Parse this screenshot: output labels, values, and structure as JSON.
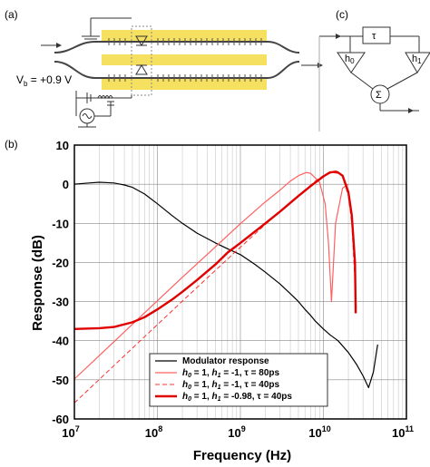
{
  "panels": {
    "a": "(a)",
    "b": "(b)",
    "c": "(c)"
  },
  "diagram_a": {
    "bias_label": "V",
    "bias_subscript": "b",
    "bias_value": " = +0.9 V"
  },
  "diagram_c": {
    "delay_symbol": "τ",
    "h0_symbol": "h",
    "h0_sub": "0",
    "h1_symbol": "h",
    "h1_sub": "1",
    "sum_symbol": "Σ"
  },
  "chart_data": {
    "type": "line",
    "xlabel": "Frequency (Hz)",
    "ylabel": "Response (dB)",
    "x_scale": "log",
    "xlim": [
      10000000.0,
      100000000000.0
    ],
    "ylim": [
      -60,
      10
    ],
    "x_ticks": [
      {
        "value": 10000000.0,
        "base": "10",
        "exp": "7"
      },
      {
        "value": 100000000.0,
        "base": "10",
        "exp": "8"
      },
      {
        "value": 1000000000.0,
        "base": "10",
        "exp": "9"
      },
      {
        "value": 10000000000.0,
        "base": "10",
        "exp": "10"
      },
      {
        "value": 100000000000.0,
        "base": "10",
        "exp": "11"
      }
    ],
    "y_ticks": [
      10,
      0,
      -10,
      -20,
      -30,
      -40,
      -50,
      -60
    ],
    "grid": true,
    "legend_position": "bottom-right",
    "series": [
      {
        "name": "Modulator response",
        "color": "#000000",
        "style": "solid",
        "x": [
          10000000.0,
          15000000.0,
          20000000.0,
          30000000.0,
          40000000.0,
          50000000.0,
          70000000.0,
          100000000.0,
          150000000.0,
          200000000.0,
          300000000.0,
          500000000.0,
          700000000.0,
          1000000000.0,
          1500000000.0,
          2000000000.0,
          3000000000.0,
          4000000000.0,
          5000000000.0,
          6000000000.0,
          7000000000.0,
          8000000000.0,
          10000000000.0,
          12000000000.0,
          15000000000.0,
          20000000000.0,
          25000000000.0,
          30000000000.0,
          35000000000.0,
          40000000000.0,
          45000000000.0
        ],
        "y": [
          0,
          0.3,
          0.5,
          0.3,
          -0.2,
          -0.8,
          -2.5,
          -5,
          -8,
          -10,
          -12.5,
          -15,
          -16.5,
          -18,
          -20.5,
          -22.5,
          -25.5,
          -28,
          -30,
          -32,
          -33.5,
          -35,
          -37,
          -38.5,
          -40,
          -43,
          -46,
          -49,
          -52,
          -48,
          -41
        ]
      },
      {
        "name": "h0 = 1, h1 = -1, τ = 80ps",
        "legend_parts": [
          "h",
          "0",
          " = 1, ",
          "h",
          "1",
          " = -1, τ = 80ps"
        ],
        "color": "#ff6060",
        "style": "solid",
        "x": [
          10000000.0,
          20000000.0,
          50000000.0,
          100000000.0,
          200000000.0,
          500000000.0,
          1000000000.0,
          2000000000.0,
          3000000000.0,
          4000000000.0,
          5000000000.0,
          6250000000.0,
          7000000000.0,
          9000000000.0,
          10500000000.0,
          11500000000.0,
          12500000000.0,
          14000000000.0,
          17000000000.0,
          20000000000.0
        ],
        "y": [
          -49.8,
          -43.8,
          -35.8,
          -29.8,
          -23.8,
          -16,
          -10.1,
          -4.5,
          -1.5,
          0.8,
          2.2,
          3.0,
          2.8,
          0.5,
          -5,
          -15,
          -30,
          -10,
          -1,
          0
        ]
      },
      {
        "name": "h0 = 1, h1 = -1, τ = 40ps",
        "legend_parts": [
          "h",
          "0",
          " = 1, ",
          "h",
          "1",
          " = -1, τ = 40ps"
        ],
        "color": "#ff3030",
        "style": "dashed",
        "x": [
          10000000.0,
          20000000.0,
          50000000.0,
          100000000.0,
          200000000.0,
          500000000.0,
          1000000000.0,
          2000000000.0,
          4000000000.0,
          6000000000.0,
          8000000000.0,
          10000000000.0,
          12500000000.0,
          15000000000.0,
          17000000000.0,
          20000000000.0,
          22000000000.0,
          24000000000.0,
          25000000000.0
        ],
        "y": [
          -55.9,
          -49.9,
          -41.9,
          -35.9,
          -29.9,
          -22,
          -16.1,
          -10.3,
          -4.7,
          -1.5,
          0.8,
          2.2,
          3.0,
          2.8,
          2.0,
          -3,
          -10,
          -25,
          -32
        ]
      },
      {
        "name": "h0 = 1, h1 = -0.98, τ = 40ps",
        "legend_parts": [
          "h",
          "0",
          " = 1, ",
          "h",
          "1",
          " = -0.98, τ = 40ps"
        ],
        "color": "#e00000",
        "style": "thick",
        "x": [
          10000000.0,
          20000000.0,
          30000000.0,
          50000000.0,
          70000000.0,
          100000000.0,
          150000000.0,
          200000000.0,
          300000000.0,
          500000000.0,
          700000000.0,
          1000000000.0,
          2000000000.0,
          3000000000.0,
          5000000000.0,
          7000000000.0,
          10000000000.0,
          12000000000.0,
          14000000000.0,
          15000000000.0,
          17000000000.0,
          20000000000.0,
          22000000000.0,
          24000000000.0,
          24500000000.0
        ],
        "y": [
          -37,
          -36.8,
          -36.5,
          -35.3,
          -34,
          -32,
          -29.5,
          -27.5,
          -24.5,
          -20.5,
          -17.5,
          -15,
          -10,
          -7,
          -3,
          -0.5,
          2,
          3,
          3.2,
          3.0,
          2.2,
          -2,
          -8,
          -20,
          -33
        ]
      }
    ]
  }
}
